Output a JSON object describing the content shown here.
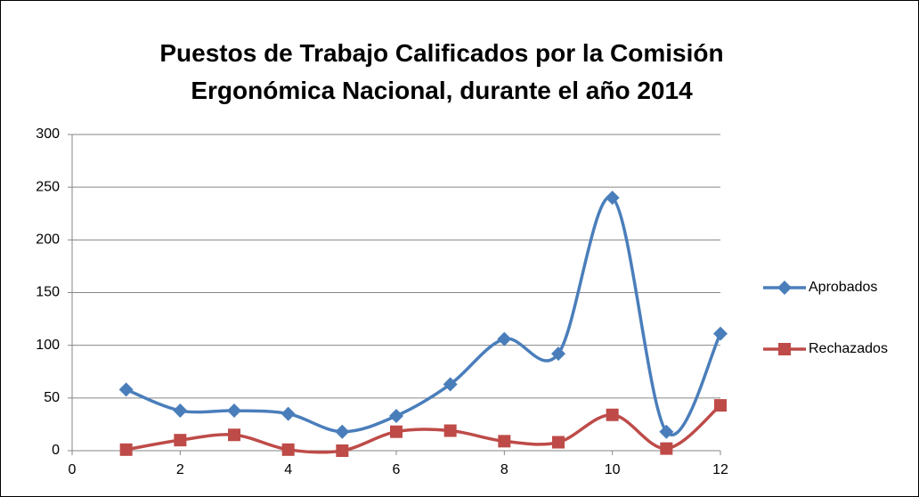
{
  "chart_data": {
    "type": "scatter-smooth",
    "title": "Puestos de Trabajo Calificados por la Comisión Ergonómica Nacional, durante el año 2014",
    "x": [
      1,
      2,
      3,
      4,
      5,
      6,
      7,
      8,
      9,
      10,
      11,
      12
    ],
    "series": [
      {
        "name": "Aprobados",
        "color": "#4a7ebb",
        "marker": "diamond",
        "values": [
          58,
          38,
          38,
          35,
          18,
          33,
          63,
          106,
          92,
          240,
          18,
          111
        ]
      },
      {
        "name": "Rechazados",
        "color": "#be4b48",
        "marker": "square",
        "values": [
          1,
          10,
          15,
          1,
          0,
          18,
          19,
          9,
          8,
          34,
          2,
          43
        ]
      }
    ],
    "xlim": [
      0,
      12
    ],
    "xticks": [
      0,
      2,
      4,
      6,
      8,
      10,
      12
    ],
    "ylim": [
      0,
      300
    ],
    "yticks": [
      0,
      50,
      100,
      150,
      200,
      250,
      300
    ],
    "grid": true,
    "legend": "right"
  }
}
